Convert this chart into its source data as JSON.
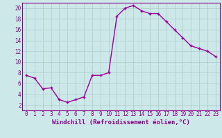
{
  "x": [
    0,
    1,
    2,
    3,
    4,
    5,
    6,
    7,
    8,
    9,
    10,
    11,
    12,
    13,
    14,
    15,
    16,
    17,
    18,
    19,
    20,
    21,
    22,
    23
  ],
  "y": [
    7.5,
    7.0,
    5.0,
    5.2,
    3.0,
    2.5,
    3.0,
    3.5,
    7.5,
    7.5,
    8.0,
    18.5,
    20.0,
    20.5,
    19.5,
    19.0,
    19.0,
    17.5,
    16.0,
    14.5,
    13.0,
    12.5,
    12.0,
    11.0
  ],
  "line_color": "#990099",
  "marker": "+",
  "marker_size": 3,
  "bg_color": "#cce8e8",
  "grid_color": "#aacccc",
  "xlabel": "Windchill (Refroidissement éolien,°C)",
  "xlim_min": -0.5,
  "xlim_max": 23.5,
  "ylim_min": 1,
  "ylim_max": 21,
  "yticks": [
    2,
    4,
    6,
    8,
    10,
    12,
    14,
    16,
    18,
    20
  ],
  "xticks": [
    0,
    1,
    2,
    3,
    4,
    5,
    6,
    7,
    8,
    9,
    10,
    11,
    12,
    13,
    14,
    15,
    16,
    17,
    18,
    19,
    20,
    21,
    22,
    23
  ],
  "tick_color": "#880088",
  "axis_color": "#880088",
  "line_width": 1.0,
  "xlabel_fontsize": 6.5,
  "tick_fontsize": 5.5
}
